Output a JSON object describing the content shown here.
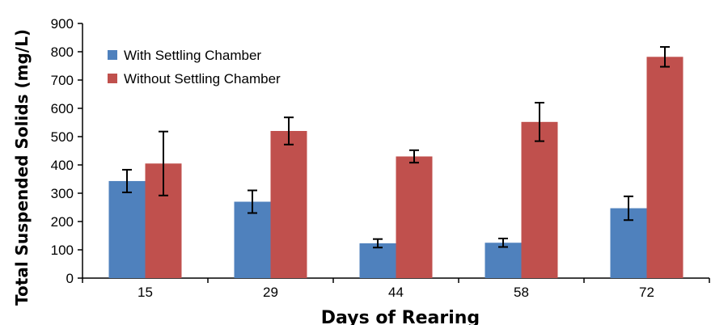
{
  "chart_data": {
    "type": "bar",
    "title": "",
    "xlabel": "Days of Rearing",
    "ylabel": "Total Suspended Solids (mg/L)",
    "categories": [
      "15",
      "29",
      "44",
      "58",
      "72"
    ],
    "ylim": [
      0,
      900
    ],
    "yticks": [
      "0",
      "100",
      "200",
      "300",
      "400",
      "500",
      "600",
      "700",
      "800",
      "900"
    ],
    "grid": false,
    "legend_position": "top-left",
    "series": [
      {
        "name": "With Settling Chamber",
        "color": "#4f81bd",
        "values": [
          343,
          270,
          123,
          125,
          247
        ],
        "error": [
          40,
          40,
          15,
          15,
          42
        ]
      },
      {
        "name": "Without Settling Chamber",
        "color": "#c0504d",
        "values": [
          405,
          520,
          430,
          552,
          782
        ],
        "error": [
          113,
          48,
          22,
          68,
          35
        ]
      }
    ]
  }
}
